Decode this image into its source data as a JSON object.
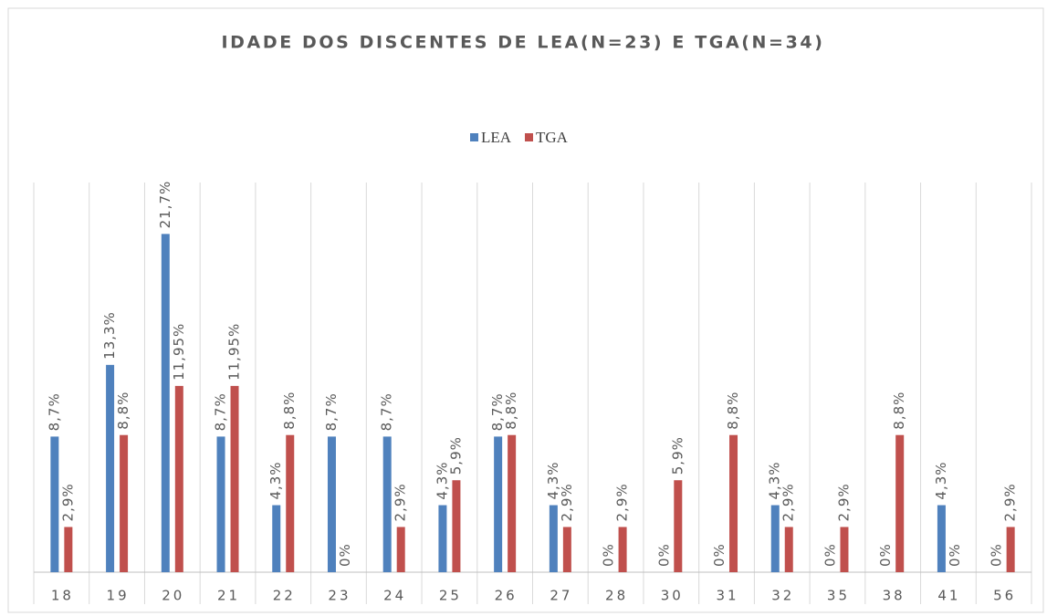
{
  "chart_data": {
    "type": "bar",
    "title": "IDADE DOS DISCENTES DE LEA(N=23) E TGA(N=34)",
    "categories": [
      "18",
      "19",
      "20",
      "21",
      "22",
      "23",
      "24",
      "25",
      "26",
      "27",
      "28",
      "30",
      "31",
      "32",
      "35",
      "38",
      "41",
      "56"
    ],
    "series": [
      {
        "name": "LEA",
        "color": "#4f81bd",
        "values": [
          8.7,
          13.3,
          21.7,
          8.7,
          4.3,
          8.7,
          8.7,
          4.3,
          8.7,
          4.3,
          0,
          0,
          0,
          4.3,
          0,
          0,
          4.3,
          0
        ],
        "value_labels": [
          "8,7%",
          "13,3%",
          "21,7%",
          "8,7%",
          "4,3%",
          "8,7%",
          "8,7%",
          "4,3%",
          "8,7%",
          "4,3%",
          "0%",
          "0%",
          "0%",
          "4,3%",
          "0%",
          "0%",
          "4,3%",
          "0%"
        ]
      },
      {
        "name": "TGA",
        "color": "#c0504d",
        "values": [
          2.9,
          8.8,
          11.95,
          11.95,
          8.8,
          0,
          2.9,
          5.9,
          8.8,
          2.9,
          2.9,
          5.9,
          8.8,
          2.9,
          2.9,
          8.8,
          0,
          2.9
        ],
        "value_labels": [
          "2,9%",
          "8,8%",
          "11,95%",
          "11,95%",
          "8,8%",
          "0%",
          "2,9%",
          "5,9%",
          "8,8%",
          "2,9%",
          "2,9%",
          "5,9%",
          "8,8%",
          "2,9%",
          "2,9%",
          "8,8%",
          "0%",
          "2,9%"
        ]
      }
    ],
    "ylim": [
      0,
      25
    ],
    "legend": "top"
  }
}
